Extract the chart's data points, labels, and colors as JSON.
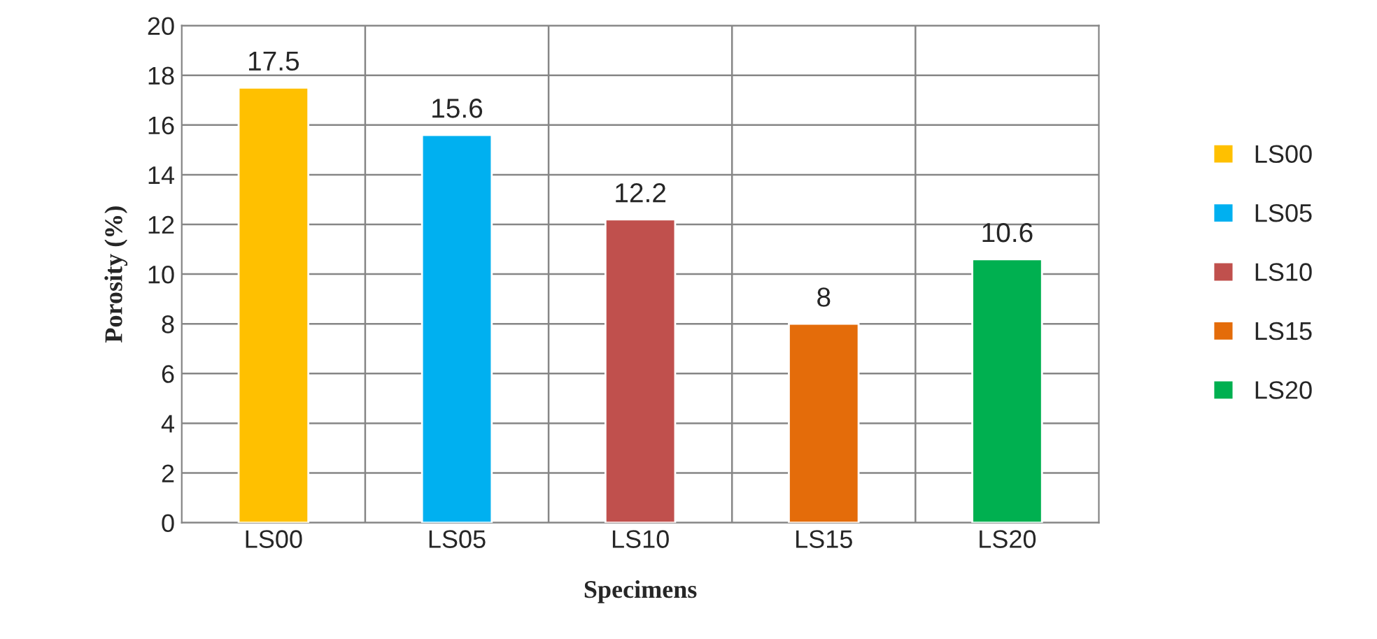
{
  "chart_data": {
    "type": "bar",
    "xlabel": "Specimens",
    "ylabel": "Porosity (%)",
    "categories": [
      "LS00",
      "LS05",
      "LS10",
      "LS15",
      "LS20"
    ],
    "series": [
      {
        "name": "LS00",
        "color": "#ffc000",
        "values": [
          17.5,
          null,
          null,
          null,
          null
        ]
      },
      {
        "name": "LS05",
        "color": "#00b0f0",
        "values": [
          null,
          15.6,
          null,
          null,
          null
        ]
      },
      {
        "name": "LS10",
        "color": "#c0504d",
        "values": [
          null,
          null,
          12.2,
          null,
          null
        ]
      },
      {
        "name": "LS15",
        "color": "#e46c0a",
        "values": [
          null,
          null,
          null,
          8,
          null
        ]
      },
      {
        "name": "LS20",
        "color": "#00b050",
        "values": [
          null,
          null,
          null,
          null,
          10.6
        ]
      }
    ],
    "ylim": [
      0,
      20
    ],
    "yticks": [
      0,
      2,
      4,
      6,
      8,
      10,
      12,
      14,
      16,
      18,
      20
    ],
    "grid": true,
    "data_labels": true,
    "legend": "right"
  }
}
